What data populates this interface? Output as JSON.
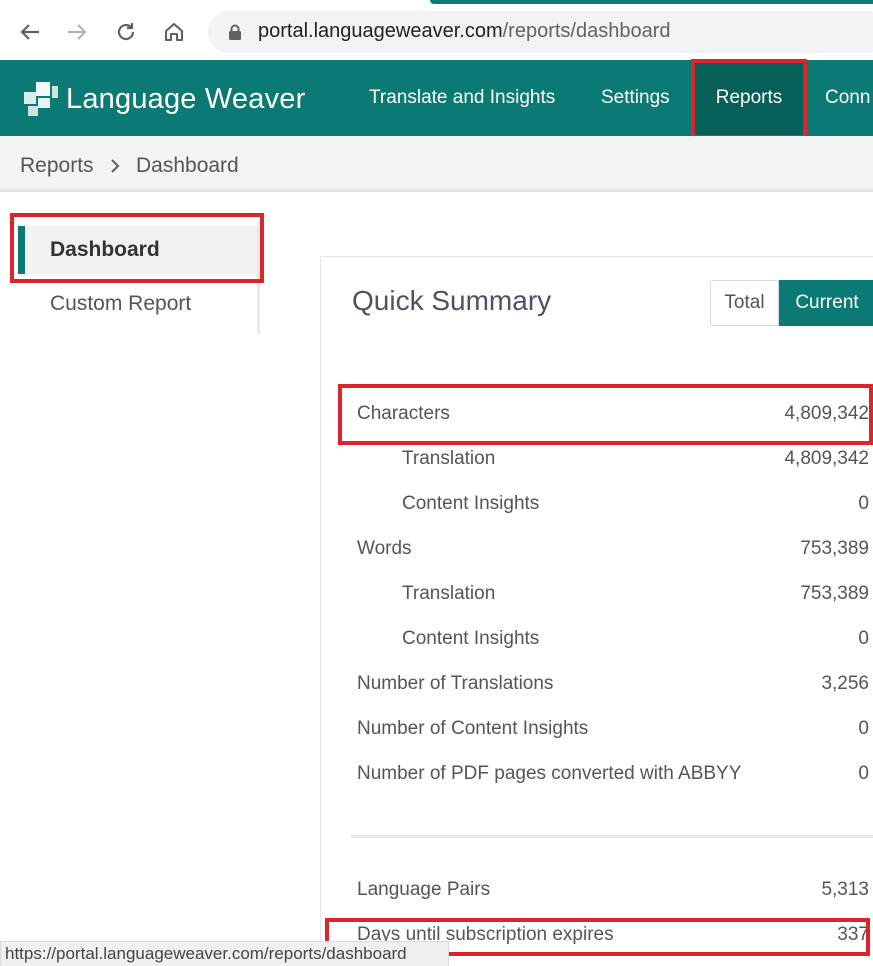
{
  "browser": {
    "url_host": "portal.languageweaver.com",
    "url_path": "/reports/dashboard",
    "status_url": "https://portal.languageweaver.com/reports/dashboard"
  },
  "header": {
    "logo_text": "Language Weaver",
    "nav": [
      {
        "label": "Translate and Insights"
      },
      {
        "label": "Settings"
      },
      {
        "label": "Reports"
      },
      {
        "label": "Conn"
      }
    ],
    "active_nav": "Reports",
    "brand_color": "#0b7a74"
  },
  "breadcrumb": {
    "items": [
      {
        "label": "Reports"
      },
      {
        "label": "Dashboard"
      }
    ]
  },
  "sidebar": {
    "items": [
      {
        "label": "Dashboard",
        "active": true
      },
      {
        "label": "Custom Report",
        "active": false
      }
    ]
  },
  "summary": {
    "title": "Quick Summary",
    "toggle": {
      "total_label": "Total",
      "current_label": "Current",
      "selected": "Current"
    },
    "rows": [
      {
        "label": "Characters",
        "value": "4,809,342"
      },
      {
        "label": "Translation",
        "value": "4,809,342"
      },
      {
        "label": "Content Insights",
        "value": "0"
      },
      {
        "label": "Words",
        "value": "753,389"
      },
      {
        "label": "Translation",
        "value": "753,389"
      },
      {
        "label": "Content Insights",
        "value": "0"
      },
      {
        "label": "Number of Translations",
        "value": "3,256"
      },
      {
        "label": "Number of Content Insights",
        "value": "0"
      },
      {
        "label": "Number of PDF pages converted with ABBYY",
        "value": "0"
      }
    ],
    "rows2": [
      {
        "label": "Language Pairs",
        "value": "5,313"
      },
      {
        "label": "Days until subscription expires",
        "value": "337"
      }
    ]
  },
  "highlight_color": "#d9252b"
}
